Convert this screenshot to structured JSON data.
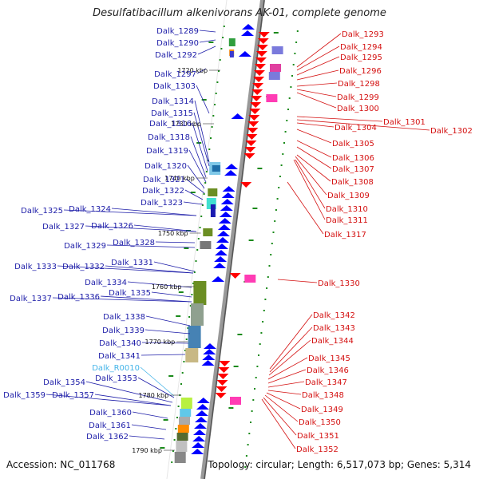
{
  "title": "Desulfatibacillum alkenivorans AK-01, complete genome",
  "footer": {
    "accession": "Accession: NC_011768",
    "topology": "Topology: circular; Length: 6,517,073 bp; Genes: 5,314"
  },
  "colors": {
    "left_label": "#1c1ca8",
    "right_label": "#d41010",
    "rna_label": "#44b4e8",
    "axis": "#999999",
    "axis_dark": "#555555",
    "tick": "#1a8a1a"
  },
  "kbp_marks": [
    "1720 kbp",
    "1730 kbp",
    "1740 kbp",
    "1750 kbp",
    "1760 kbp",
    "1770 kbp",
    "1780 kbp",
    "1790 kbp"
  ],
  "left_genes": [
    "Dalk_1289",
    "Dalk_1290",
    "Dalk_1292",
    "Dalk_1297",
    "Dalk_1303",
    "Dalk_1314",
    "Dalk_1315",
    "Dalk_1316",
    "Dalk_1318",
    "Dalk_1319",
    "Dalk_1320",
    "Dalk_1321",
    "Dalk_1322",
    "Dalk_1323",
    "Dalk_1324",
    "Dalk_1325",
    "Dalk_1326",
    "Dalk_1327",
    "Dalk_1328",
    "Dalk_1329",
    "Dalk_1331",
    "Dalk_1332",
    "Dalk_1333",
    "Dalk_1334",
    "Dalk_1335",
    "Dalk_1336",
    "Dalk_1337",
    "Dalk_1338",
    "Dalk_1339",
    "Dalk_1340",
    "Dalk_1341",
    "Dalk_R0010",
    "Dalk_1353",
    "Dalk_1354",
    "Dalk_1357",
    "Dalk_1359",
    "Dalk_1360",
    "Dalk_1361",
    "Dalk_1362"
  ],
  "right_genes": [
    "Dalk_1293",
    "Dalk_1294",
    "Dalk_1295",
    "Dalk_1296",
    "Dalk_1298",
    "Dalk_1299",
    "Dalk_1300",
    "Dalk_1301",
    "Dalk_1302",
    "Dalk_1304",
    "Dalk_1305",
    "Dalk_1306",
    "Dalk_1307",
    "Dalk_1308",
    "Dalk_1309",
    "Dalk_1310",
    "Dalk_1311",
    "Dalk_1317",
    "Dalk_1330",
    "Dalk_1342",
    "Dalk_1343",
    "Dalk_1344",
    "Dalk_1345",
    "Dalk_1346",
    "Dalk_1347",
    "Dalk_1348",
    "Dalk_1349",
    "Dalk_1350",
    "Dalk_1351",
    "Dalk_1352"
  ]
}
